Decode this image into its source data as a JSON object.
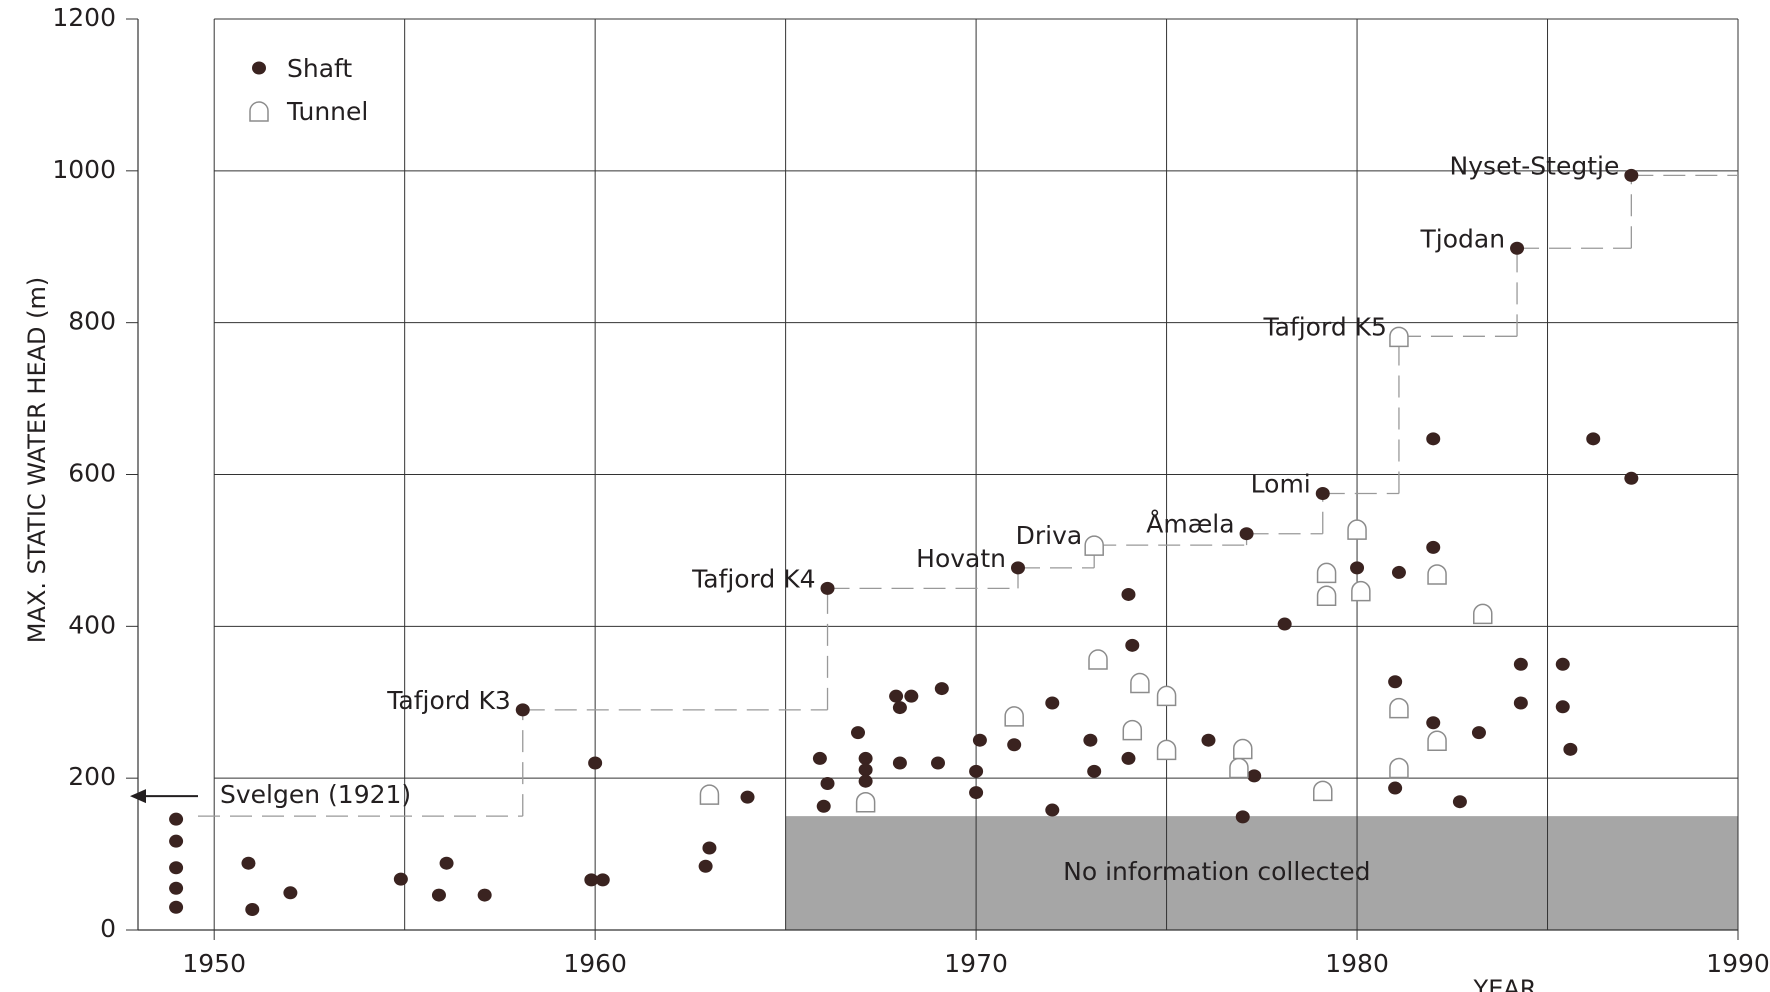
{
  "chart_data": {
    "type": "scatter",
    "ylabel": "MAX. STATIC WATER HEAD  (m)",
    "xlabel": "YEAR",
    "xlim": [
      1948,
      1990
    ],
    "ylim": [
      0,
      1200
    ],
    "xticks": [
      1950,
      1960,
      1970,
      1980,
      1990
    ],
    "xgrid": [
      1950,
      1955,
      1960,
      1965,
      1970,
      1975,
      1980,
      1985,
      1990
    ],
    "yticks": [
      0,
      200,
      400,
      600,
      800,
      1000,
      1200
    ],
    "grid": true,
    "legend": "upper left",
    "series": [
      {
        "name": "Shaft",
        "color": "#3a2320",
        "marker": "shaft",
        "x": [
          1949,
          1949,
          1949,
          1949,
          1949,
          1950.9,
          1951,
          1952,
          1954.9,
          1956.1,
          1955.9,
          1957.1,
          1958.1,
          1960,
          1959.9,
          1960.2,
          1962.9,
          1963,
          1964,
          1966.1,
          1965.9,
          1966.1,
          1966,
          1966.9,
          1967.1,
          1967.1,
          1967.1,
          1968,
          1967.9,
          1968.3,
          1968,
          1969.1,
          1969,
          1970.1,
          1970,
          1970,
          1971,
          1971.1,
          1972,
          1972,
          1973,
          1973.1,
          1974,
          1974.1,
          1974,
          1976.1,
          1977.1,
          1977,
          1977.3,
          1978.1,
          1979.1,
          1980,
          1981.1,
          1981,
          1981,
          1982,
          1982,
          1982,
          1983.2,
          1982.7,
          1984.2,
          1984.3,
          1984.3,
          1985.4,
          1985.4,
          1985.6,
          1986.2,
          1987.2,
          1987.2
        ],
        "values": [
          146,
          117,
          82,
          55,
          30,
          88,
          27,
          49,
          67,
          88,
          46,
          46,
          290,
          220,
          66,
          66,
          84,
          108,
          175,
          450,
          226,
          193,
          163,
          260,
          226,
          211,
          196,
          220,
          308,
          308,
          293,
          318,
          220,
          250,
          209,
          181,
          244,
          477,
          299,
          158,
          250,
          209,
          442,
          375,
          226,
          250,
          522,
          149,
          203,
          403,
          575,
          477,
          471,
          327,
          187,
          647,
          504,
          273,
          260,
          169,
          898,
          350,
          299,
          350,
          294,
          238,
          647,
          595,
          994
        ]
      },
      {
        "name": "Tunnel",
        "color": "#8c8c8c",
        "marker": "tunnel",
        "x": [
          1963,
          1967.1,
          1971,
          1973.1,
          1973.2,
          1974.1,
          1974.3,
          1975,
          1975,
          1976.9,
          1977,
          1979.1,
          1979.2,
          1979.2,
          1980,
          1980.1,
          1981.1,
          1981.1,
          1981.1,
          1982.1,
          1982.1,
          1983.3
        ],
        "values": [
          179,
          169,
          282,
          507,
          357,
          264,
          326,
          309,
          238,
          214,
          239,
          184,
          471,
          441,
          528,
          447,
          782,
          293,
          214,
          469,
          250,
          417
        ]
      }
    ],
    "annotations": [
      {
        "text": "Svelgen (1921)",
        "x": 1921,
        "y": 150
      },
      {
        "text": "Tafjord K3",
        "x": 1958.1,
        "y": 290
      },
      {
        "text": "Tafjord K4",
        "x": 1966.1,
        "y": 450
      },
      {
        "text": "Hovatn",
        "x": 1971.1,
        "y": 477
      },
      {
        "text": "Driva",
        "x": 1973.1,
        "y": 507
      },
      {
        "text": "Åmæla",
        "x": 1977.1,
        "y": 522
      },
      {
        "text": "Lomi",
        "x": 1979.1,
        "y": 575
      },
      {
        "text": "Tafjord K5",
        "x": 1981.1,
        "y": 782
      },
      {
        "text": "Tjodan",
        "x": 1984.2,
        "y": 898
      },
      {
        "text": "Nyset-Stegtje",
        "x": 1987.2,
        "y": 994
      }
    ],
    "shaded_region": {
      "text": "No information  collected",
      "xlim": [
        1965,
        1990
      ],
      "ylim": [
        0,
        150
      ],
      "color": "#a6a6a6"
    }
  }
}
